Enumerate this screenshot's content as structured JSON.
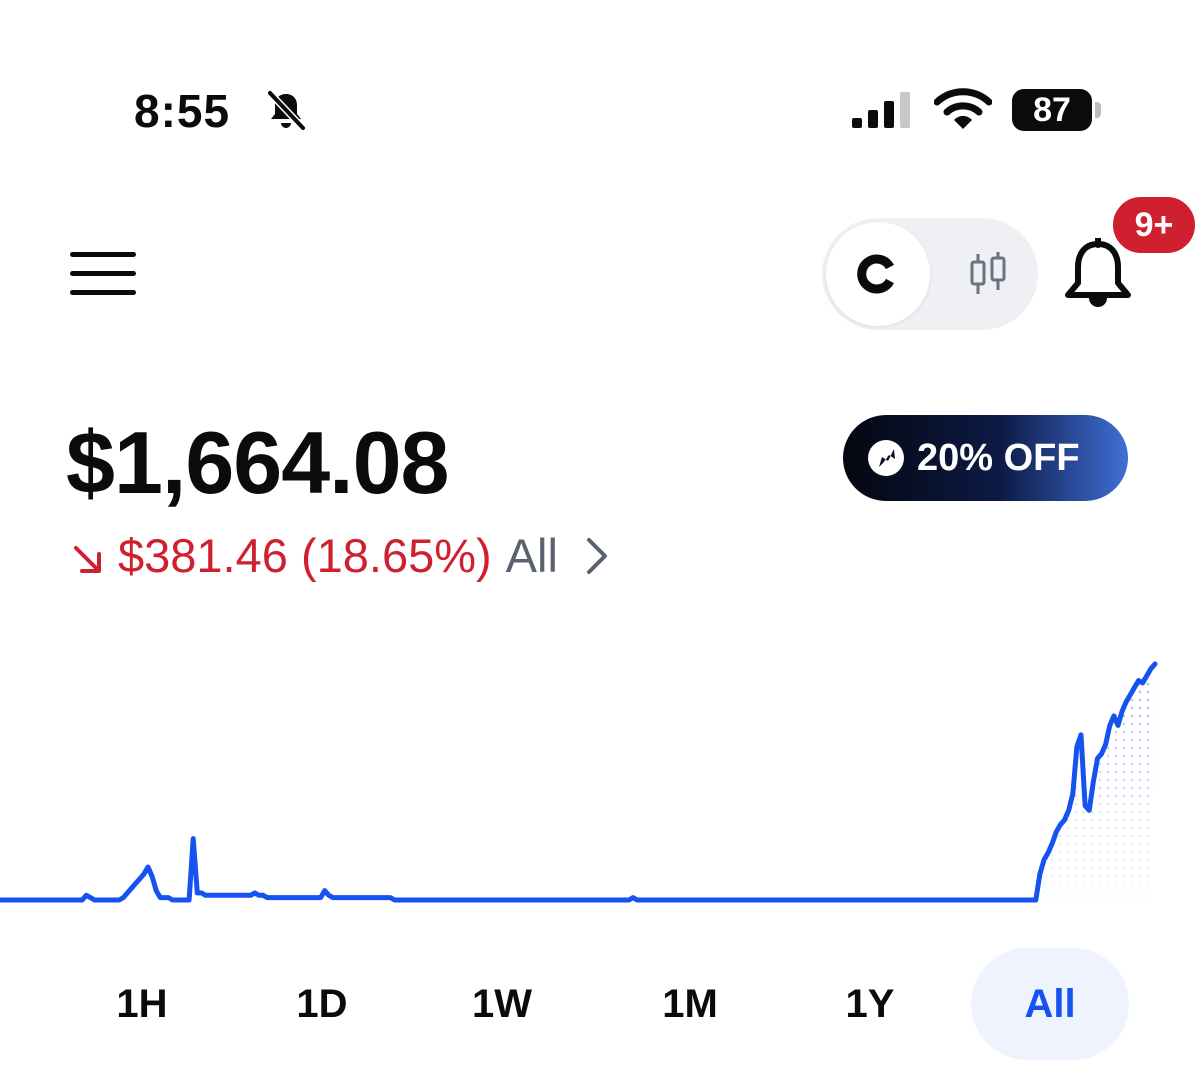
{
  "status_bar": {
    "time": "8:55",
    "battery": "87",
    "icons": [
      "bell-slash-icon",
      "cellular-signal-icon",
      "wifi-icon",
      "battery-icon"
    ]
  },
  "header": {
    "menu_icon": "hamburger-menu-icon",
    "toggle_options": [
      "coinbase-logo-icon",
      "candlestick-icon"
    ],
    "notification_icon": "bell-icon",
    "notification_badge": "9+"
  },
  "portfolio": {
    "balance": "$1,664.08",
    "change": "$381.46 (18.65%)",
    "change_range": "All",
    "change_direction": "down",
    "promo_label": "20% OFF"
  },
  "colors": {
    "line": "#1652f0",
    "negative": "#cf202f",
    "muted": "#5b616e",
    "tab_active_bg": "#eef3fe"
  },
  "chart_data": {
    "type": "line",
    "title": "",
    "xlabel": "",
    "ylabel": "",
    "grid": false,
    "values": [
      0.0,
      0.0,
      0.0,
      0.0,
      0.0,
      0.0,
      0.0,
      0.0,
      0.0,
      0.0,
      0.0,
      0.0,
      0.0,
      0.0,
      0.0,
      0.0,
      0.0,
      0.0,
      0.0,
      0.0,
      0.0,
      0.02,
      0.01,
      0.0,
      0.0,
      0.0,
      0.0,
      0.0,
      0.0,
      0.0,
      0.01,
      0.03,
      0.05,
      0.07,
      0.09,
      0.11,
      0.14,
      0.1,
      0.04,
      0.01,
      0.01,
      0.01,
      0.0,
      0.0,
      0.0,
      0.0,
      0.0,
      0.26,
      0.03,
      0.03,
      0.02,
      0.02,
      0.02,
      0.02,
      0.02,
      0.02,
      0.02,
      0.02,
      0.02,
      0.02,
      0.02,
      0.02,
      0.03,
      0.02,
      0.02,
      0.01,
      0.01,
      0.01,
      0.01,
      0.01,
      0.01,
      0.01,
      0.01,
      0.01,
      0.01,
      0.01,
      0.01,
      0.01,
      0.01,
      0.04,
      0.02,
      0.01,
      0.01,
      0.01,
      0.01,
      0.01,
      0.01,
      0.01,
      0.01,
      0.01,
      0.01,
      0.01,
      0.01,
      0.01,
      0.01,
      0.01,
      0.0,
      0.0,
      0.0,
      0.0,
      0.0,
      0.0,
      0.0,
      0.0,
      0.0,
      0.0,
      0.0,
      0.0,
      0.0,
      0.0,
      0.0,
      0.0,
      0.0,
      0.0,
      0.0,
      0.0,
      0.0,
      0.0,
      0.0,
      0.0,
      0.0,
      0.0,
      0.0,
      0.0,
      0.0,
      0.0,
      0.0,
      0.0,
      0.0,
      0.0,
      0.0,
      0.0,
      0.0,
      0.0,
      0.0,
      0.0,
      0.0,
      0.0,
      0.0,
      0.0,
      0.0,
      0.0,
      0.0,
      0.0,
      0.0,
      0.0,
      0.0,
      0.0,
      0.0,
      0.0,
      0.0,
      0.0,
      0.0,
      0.0,
      0.01,
      0.0,
      0.0,
      0.0,
      0.0,
      0.0,
      0.0,
      0.0,
      0.0,
      0.0,
      0.0,
      0.0,
      0.0,
      0.0,
      0.0,
      0.0,
      0.0,
      0.0,
      0.0,
      0.0,
      0.0,
      0.0,
      0.0,
      0.0,
      0.0,
      0.0,
      0.0,
      0.0,
      0.0,
      0.0,
      0.0,
      0.0,
      0.0,
      0.0,
      0.0,
      0.0,
      0.0,
      0.0,
      0.0,
      0.0,
      0.0,
      0.0,
      0.0,
      0.0,
      0.0,
      0.0,
      0.0,
      0.0,
      0.0,
      0.0,
      0.0,
      0.0,
      0.0,
      0.0,
      0.0,
      0.0,
      0.0,
      0.0,
      0.0,
      0.0,
      0.0,
      0.0,
      0.0,
      0.0,
      0.0,
      0.0,
      0.0,
      0.0,
      0.0,
      0.0,
      0.0,
      0.0,
      0.0,
      0.0,
      0.0,
      0.0,
      0.0,
      0.0,
      0.0,
      0.0,
      0.0,
      0.0,
      0.0,
      0.0,
      0.0,
      0.0,
      0.0,
      0.0,
      0.0,
      0.0,
      0.0,
      0.0,
      0.0,
      0.0,
      0.0,
      0.0,
      0.0,
      0.0,
      0.0,
      0.11,
      0.17,
      0.2,
      0.24,
      0.29,
      0.32,
      0.34,
      0.38,
      0.45,
      0.65,
      0.7,
      0.4,
      0.38,
      0.5,
      0.6,
      0.62,
      0.66,
      0.74,
      0.78,
      0.74,
      0.8,
      0.84,
      0.87,
      0.9,
      0.93,
      0.92,
      0.95,
      0.98,
      1.0
    ],
    "ylim": [
      0,
      1
    ]
  },
  "range_tabs": {
    "items": [
      "1H",
      "1D",
      "1W",
      "1M",
      "1Y",
      "All"
    ],
    "active": "All"
  }
}
